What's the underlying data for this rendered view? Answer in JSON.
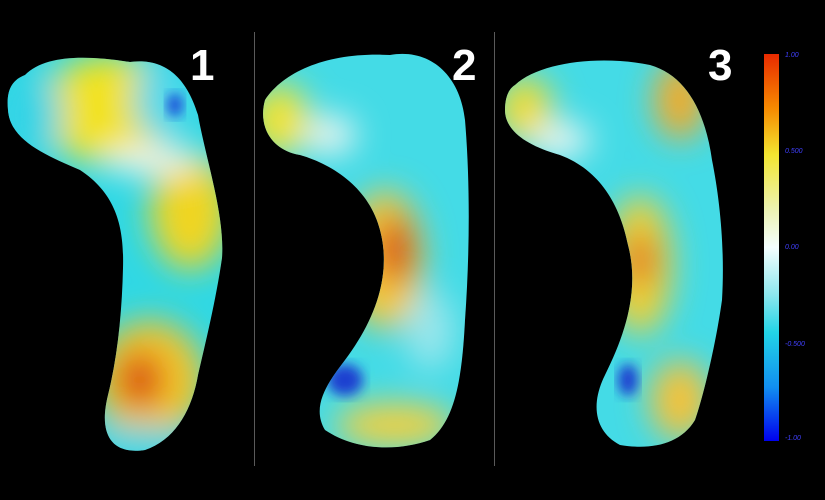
{
  "panels": [
    {
      "label": "1"
    },
    {
      "label": "2"
    },
    {
      "label": "3"
    }
  ],
  "colorbar": {
    "ticks": [
      "1.00",
      "0.500",
      "0.00",
      "-0.500",
      "-1.00"
    ],
    "colors": [
      "#e82a00",
      "#f2e530",
      "#f4ffff",
      "#22d4e6",
      "#0000ee"
    ]
  }
}
